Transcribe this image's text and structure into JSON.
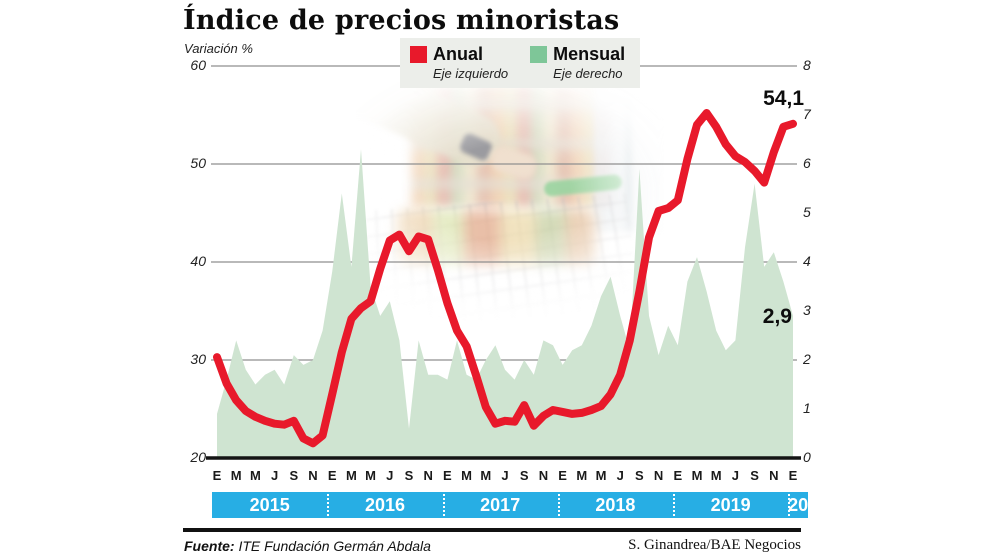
{
  "header": {
    "title": "Índice de precios minoristas",
    "subtitle": "Variación %"
  },
  "legend": [
    {
      "label": "Anual",
      "sublabel": "Eje izquierdo",
      "color": "#e8192b"
    },
    {
      "label": "Mensual",
      "sublabel": "Eje derecho",
      "color": "#7ec698"
    }
  ],
  "annotations": [
    {
      "text": "54,1",
      "series": "Anual"
    },
    {
      "text": "2,9",
      "series": "Mensual"
    }
  ],
  "footer": {
    "source_label": "Fuente:",
    "source_text": "ITE Fundación Germán Abdala",
    "credit": "S. Ginandrea/BAE Negocios"
  },
  "chart_data": {
    "type": "line",
    "title": "Índice de precios minoristas",
    "ylabel_left": "Variación % (Anual)",
    "ylabel_right": "Variación % (Mensual)",
    "x_start": "Enero 2015",
    "x_end": "Enero 2020",
    "month_tick_labels": [
      "E",
      "M",
      "M",
      "J",
      "S",
      "N"
    ],
    "final_month_label": "E",
    "years": [
      "2015",
      "2016",
      "2017",
      "2018",
      "2019",
      "20"
    ],
    "left_axis": {
      "min": 20,
      "max": 60,
      "ticks": [
        "60",
        "50",
        "40",
        "30",
        "20"
      ]
    },
    "right_axis": {
      "min": 0,
      "max": 8,
      "ticks": [
        "8",
        "7",
        "6",
        "5",
        "4",
        "3",
        "2",
        "1",
        "0"
      ]
    },
    "grid_at_left_values": [
      60,
      50,
      40,
      30
    ],
    "colors": {
      "anual_line": "#e8192b",
      "mensual_area": "#cfe4d1",
      "year_band": "#27aee4",
      "grid": "#8f8f8f",
      "baseline": "#141414"
    },
    "series": [
      {
        "name": "Anual",
        "axis": "left",
        "values": [
          30.3,
          27.6,
          25.9,
          24.8,
          24.2,
          23.8,
          23.5,
          23.4,
          23.8,
          22.0,
          21.5,
          22.3,
          26.5,
          30.8,
          34.2,
          35.3,
          36.0,
          39.3,
          42.2,
          42.8,
          41.1,
          42.6,
          42.3,
          39.2,
          35.8,
          33.0,
          31.4,
          28.4,
          25.2,
          23.5,
          23.8,
          23.7,
          25.4,
          23.3,
          24.3,
          24.9,
          24.7,
          24.5,
          24.6,
          24.9,
          25.3,
          26.5,
          28.5,
          32.0,
          37.0,
          42.5,
          45.2,
          45.5,
          46.3,
          50.5,
          54.0,
          55.2,
          53.8,
          52.0,
          50.8,
          50.2,
          49.3,
          48.1,
          51.2,
          53.8,
          54.1
        ]
      },
      {
        "name": "Mensual",
        "axis": "right",
        "values": [
          0.9,
          1.6,
          2.4,
          1.8,
          1.5,
          1.7,
          1.8,
          1.5,
          2.1,
          1.9,
          2.0,
          2.6,
          3.8,
          5.4,
          3.9,
          6.3,
          3.5,
          2.9,
          3.2,
          2.4,
          0.6,
          2.4,
          1.7,
          1.7,
          1.6,
          2.4,
          1.7,
          1.6,
          2.0,
          2.3,
          1.8,
          1.6,
          2.0,
          1.7,
          2.4,
          2.3,
          1.9,
          2.2,
          2.3,
          2.7,
          3.3,
          3.7,
          2.9,
          2.2,
          5.9,
          2.9,
          2.1,
          2.7,
          2.3,
          3.6,
          4.1,
          3.4,
          2.6,
          2.2,
          2.4,
          4.3,
          5.6,
          3.9,
          4.2,
          3.6,
          2.9
        ]
      }
    ]
  }
}
